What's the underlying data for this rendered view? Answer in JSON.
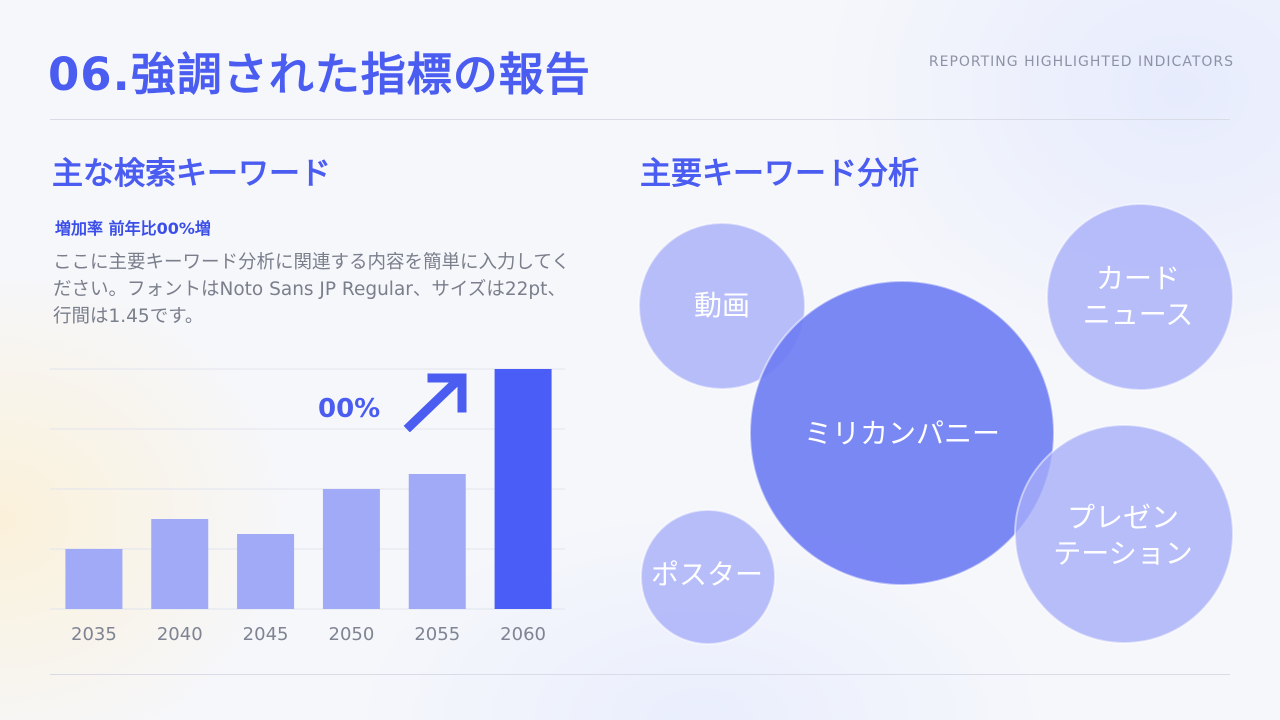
{
  "header": {
    "title": "06.強調された指標の報告",
    "subtitle_en": "REPORTING HIGHLIGHTED INDICATORS"
  },
  "left": {
    "heading": "主な検索キーワード",
    "growth_label": "増加率 前年比00%増",
    "description": "ここに主要キーワード分析に関連する内容を簡単に入力してください。フォントはNoto Sans JP Regular、サイズは22pt、行間は1.45です。",
    "highlight_value": "00%",
    "arrow_icon": "arrow-up-right-icon"
  },
  "right": {
    "heading": "主要キーワード分析",
    "bubbles": [
      {
        "label": "動画"
      },
      {
        "label": "カード\nニュース"
      },
      {
        "label": "ミリカンパニー"
      },
      {
        "label": "プレゼン\nテーション"
      },
      {
        "label": "ポスター"
      }
    ]
  },
  "colors": {
    "accent": "#4a5df0",
    "bar_light": "#a0aaf7",
    "bar_highlight": "#4a5ef7",
    "bubble_light": "#a5adf7",
    "bubble_main": "#6d7bf3"
  },
  "chart_data": {
    "type": "bar",
    "categories": [
      "2035",
      "2040",
      "2045",
      "2050",
      "2055",
      "2060"
    ],
    "values": [
      20,
      30,
      25,
      40,
      45,
      80
    ],
    "highlight_index": 5,
    "ylim": [
      0,
      80
    ],
    "grid": true,
    "title": "",
    "xlabel": "",
    "ylabel": ""
  }
}
